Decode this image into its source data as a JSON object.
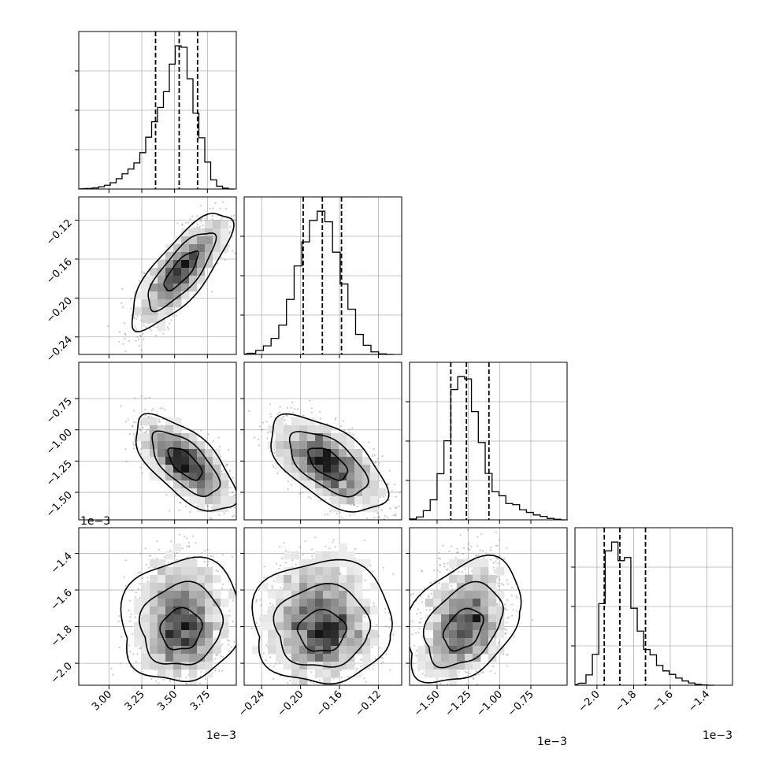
{
  "chart_data": {
    "type": "corner",
    "parameters": [
      {
        "range": [
          2.77,
          3.97
        ],
        "ticks": [
          3.0,
          3.25,
          3.5,
          3.75
        ],
        "tick_labels": [
          "3.00",
          "3.25",
          "3.50",
          "3.75"
        ],
        "offset_label": "1e−3",
        "quantiles": [
          3.355,
          3.535,
          3.675
        ],
        "hist": {
          "edges": [
            2.83,
            2.875,
            2.92,
            2.965,
            3.01,
            3.055,
            3.1,
            3.145,
            3.19,
            3.235,
            3.28,
            3.325,
            3.37,
            3.415,
            3.46,
            3.505,
            3.55,
            3.595,
            3.64,
            3.685,
            3.73,
            3.775,
            3.82,
            3.865,
            3.91,
            3.955
          ],
          "counts": [
            4,
            8,
            16,
            26,
            44,
            72,
            106,
            140,
            182,
            254,
            362,
            470,
            570,
            680,
            872,
            1000,
            990,
            770,
            530,
            358,
            188,
            64,
            20,
            6,
            0
          ]
        }
      },
      {
        "range": [
          -0.258,
          -0.096
        ],
        "ticks": [
          -0.24,
          -0.2,
          -0.16,
          -0.12
        ],
        "tick_labels": [
          "−0.24",
          "−0.20",
          "−0.16",
          "−0.12"
        ],
        "offset_label": "",
        "quantiles": [
          -0.1973,
          -0.1776,
          -0.1579
        ],
        "hist": {
          "edges": [
            -0.254,
            -0.2461,
            -0.2382,
            -0.2303,
            -0.2224,
            -0.2145,
            -0.2066,
            -0.1987,
            -0.1908,
            -0.1829,
            -0.175,
            -0.1671,
            -0.1592,
            -0.1513,
            -0.1434,
            -0.1355,
            -0.1276,
            -0.1197,
            -0.1118,
            -0.1039
          ],
          "counts": [
            8,
            28,
            60,
            112,
            204,
            384,
            618,
            786,
            936,
            1000,
            926,
            714,
            492,
            316,
            140,
            64,
            18,
            4,
            0
          ]
        }
      },
      {
        "range": [
          -1.72,
          -0.46
        ],
        "ticks": [
          -1.5,
          -1.25,
          -1.0,
          -0.75
        ],
        "tick_labels": [
          "−1.50",
          "−1.25",
          "−1.00",
          "−0.75"
        ],
        "offset_label": "1e−3",
        "quantiles": [
          -1.39,
          -1.265,
          -1.085
        ],
        "hist": {
          "edges": [
            -1.72,
            -1.665,
            -1.61,
            -1.555,
            -1.5,
            -1.445,
            -1.39,
            -1.335,
            -1.28,
            -1.225,
            -1.17,
            -1.115,
            -1.06,
            -1.005,
            -0.95,
            -0.895,
            -0.84,
            -0.785,
            -0.73,
            -0.675,
            -0.62,
            -0.565,
            -0.51,
            -0.455
          ],
          "counts": [
            6,
            20,
            64,
            140,
            322,
            552,
            910,
            1000,
            984,
            756,
            540,
            324,
            196,
            168,
            114,
            106,
            70,
            52,
            34,
            24,
            10,
            4,
            0
          ]
        }
      },
      {
        "range": [
          -2.12,
          -1.26
        ],
        "ticks": [
          -2.0,
          -1.8,
          -1.6,
          -1.4
        ],
        "tick_labels": [
          "−2.0",
          "−1.8",
          "−1.6",
          "−1.4"
        ],
        "offset_label": "1e−3",
        "quantiles": [
          -1.96,
          -1.875,
          -1.735
        ],
        "hist": {
          "edges": [
            -2.095,
            -2.06,
            -2.025,
            -1.99,
            -1.955,
            -1.92,
            -1.885,
            -1.85,
            -1.815,
            -1.78,
            -1.745,
            -1.71,
            -1.675,
            -1.64,
            -1.605,
            -1.57,
            -1.535,
            -1.5,
            -1.465,
            -1.43,
            -1.395,
            -1.36
          ],
          "counts": [
            14,
            72,
            216,
            570,
            938,
            1000,
            870,
            892,
            538,
            378,
            250,
            212,
            138,
            100,
            76,
            50,
            30,
            16,
            6,
            2,
            0
          ]
        }
      }
    ],
    "pairs": [
      {
        "row": 1,
        "col": 0,
        "center": [
          3.55,
          -0.172
        ],
        "sigma": [
          0.16,
          0.025
        ],
        "rho": 0.78,
        "shape": "gaussian",
        "rings": [
          0.8,
          1.6,
          2.4
        ]
      },
      {
        "row": 2,
        "col": 0,
        "center": [
          3.58,
          -1.27
        ],
        "sigma": [
          0.16,
          0.16
        ],
        "rho": -0.65,
        "shape": "gaussian",
        "rings": [
          0.8,
          1.6,
          2.4
        ]
      },
      {
        "row": 2,
        "col": 1,
        "center": [
          -0.172,
          -1.27
        ],
        "sigma": [
          0.025,
          0.16
        ],
        "rho": -0.58,
        "shape": "gaussian",
        "rings": [
          0.8,
          1.6,
          2.4
        ]
      },
      {
        "row": 3,
        "col": 0,
        "center": [
          3.55,
          -1.84
        ],
        "sigma": [
          0.16,
          0.12
        ],
        "rho": 0.08,
        "shape": "skew",
        "rings": [
          0.8,
          1.6,
          2.4
        ]
      },
      {
        "row": 3,
        "col": 1,
        "center": [
          -0.178,
          -1.85
        ],
        "sigma": [
          0.025,
          0.12
        ],
        "rho": 0.02,
        "shape": "skew",
        "rings": [
          0.8,
          1.6,
          2.4
        ]
      },
      {
        "row": 3,
        "col": 2,
        "center": [
          -1.29,
          -1.84
        ],
        "sigma": [
          0.16,
          0.12
        ],
        "rho": 0.35,
        "shape": "skew",
        "rings": [
          0.8,
          1.6,
          2.4
        ]
      }
    ],
    "grid": true
  }
}
